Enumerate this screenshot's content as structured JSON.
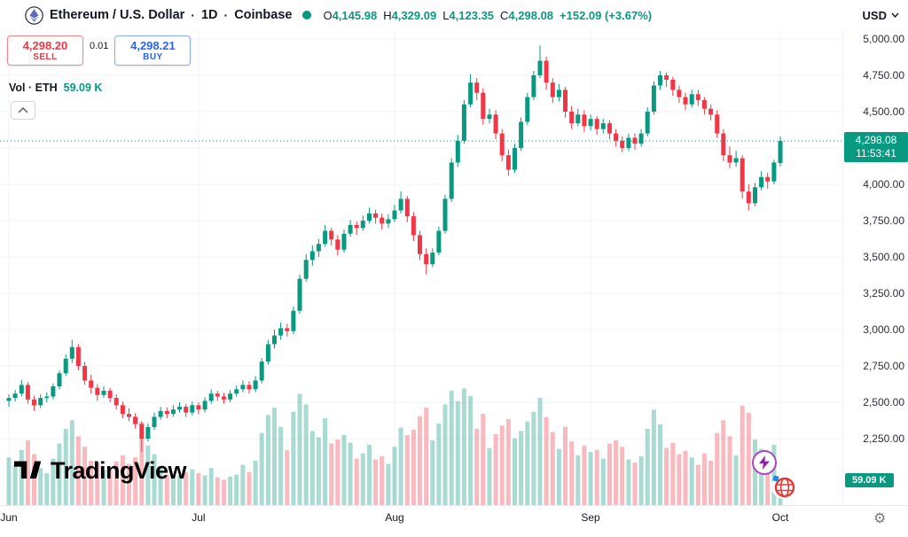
{
  "header": {
    "symbol": "Ethereum / U.S. Dollar",
    "separator": "·",
    "interval": "1D",
    "exchange": "Coinbase",
    "ohlc": {
      "o_label": "O",
      "o": "4,145.98",
      "h_label": "H",
      "h": "4,329.09",
      "l_label": "L",
      "l": "4,123.35",
      "c_label": "C",
      "c": "4,298.08",
      "change": "+152.09 (+3.67%)"
    },
    "currency": "USD"
  },
  "trade_panel": {
    "sell_price": "4,298.20",
    "sell_label": "SELL",
    "spread": "0.01",
    "buy_price": "4,298.21",
    "buy_label": "BUY"
  },
  "volume_indicator": {
    "label": "Vol · ETH",
    "value": "59.09 K"
  },
  "watermark": {
    "brand": "TradingView"
  },
  "price_scale": {
    "labels": [
      {
        "text": "5,000.00",
        "price": 5000
      },
      {
        "text": "4,750.00",
        "price": 4750
      },
      {
        "text": "4,500.00",
        "price": 4500
      },
      {
        "text": "4,000.00",
        "price": 4000
      },
      {
        "text": "3,750.00",
        "price": 3750
      },
      {
        "text": "3,500.00",
        "price": 3500
      },
      {
        "text": "3,250.00",
        "price": 3250
      },
      {
        "text": "3,000.00",
        "price": 3000
      },
      {
        "text": "2,750.00",
        "price": 2750
      },
      {
        "text": "2,500.00",
        "price": 2500
      },
      {
        "text": "2,250.00",
        "price": 2250
      }
    ],
    "current": {
      "text": "4,298.08",
      "countdown": "11:53:41",
      "price": 4298.08
    },
    "volume_badge": "59.09 K"
  },
  "time_scale": {
    "months": [
      {
        "label": "Jun",
        "candle_index": 0
      },
      {
        "label": "Jul",
        "candle_index": 30
      },
      {
        "label": "Aug",
        "candle_index": 61
      },
      {
        "label": "Sep",
        "candle_index": 92
      },
      {
        "label": "Oct",
        "candle_index": 122
      }
    ]
  },
  "icons": {
    "gear_glyph": "⚙"
  },
  "colors": {
    "up": "#089981",
    "down": "#F23645",
    "volume_up": "rgba(8,153,129,0.35)",
    "volume_down": "rgba(242,54,69,0.35)",
    "buy": "#2962FF",
    "sell": "#F23645",
    "badge": "#089981"
  },
  "chart_data": {
    "type": "candlestick",
    "title": "Ethereum / U.S. Dollar · 1D · Coinbase",
    "symbol": "ETH/USD",
    "exchange": "Coinbase",
    "interval": "1D",
    "x_axis": {
      "ticks": [
        "Jun",
        "Jul",
        "Aug",
        "Sep",
        "Oct"
      ]
    },
    "y_axis": {
      "visible_min": 1793,
      "visible_max": 5061,
      "tick_step": 250,
      "grid": true
    },
    "volume_unit": "K",
    "last_close": 4298.08,
    "columns": [
      "open",
      "high",
      "low",
      "close",
      "volume_k"
    ],
    "candles": [
      [
        2510,
        2555,
        2470,
        2530,
        117
      ],
      [
        2530,
        2585,
        2505,
        2560,
        99
      ],
      [
        2560,
        2655,
        2540,
        2620,
        135
      ],
      [
        2620,
        2640,
        2490,
        2520,
        159
      ],
      [
        2520,
        2545,
        2440,
        2480,
        125
      ],
      [
        2480,
        2555,
        2460,
        2530,
        91
      ],
      [
        2530,
        2570,
        2500,
        2540,
        78
      ],
      [
        2540,
        2630,
        2520,
        2610,
        114
      ],
      [
        2610,
        2720,
        2590,
        2700,
        151
      ],
      [
        2700,
        2830,
        2680,
        2800,
        187
      ],
      [
        2800,
        2930,
        2770,
        2880,
        208
      ],
      [
        2880,
        2900,
        2720,
        2750,
        169
      ],
      [
        2750,
        2780,
        2620,
        2650,
        143
      ],
      [
        2650,
        2690,
        2560,
        2600,
        109
      ],
      [
        2600,
        2625,
        2510,
        2550,
        104
      ],
      [
        2550,
        2610,
        2530,
        2580,
        86
      ],
      [
        2580,
        2600,
        2500,
        2530,
        94
      ],
      [
        2530,
        2555,
        2450,
        2480,
        107
      ],
      [
        2480,
        2505,
        2390,
        2420,
        122
      ],
      [
        2420,
        2460,
        2370,
        2400,
        101
      ],
      [
        2400,
        2425,
        2320,
        2350,
        117
      ],
      [
        2350,
        2370,
        2158,
        2250,
        203
      ],
      [
        2250,
        2355,
        2230,
        2330,
        146
      ],
      [
        2330,
        2430,
        2310,
        2400,
        125
      ],
      [
        2400,
        2470,
        2380,
        2440,
        96
      ],
      [
        2440,
        2465,
        2390,
        2420,
        75
      ],
      [
        2420,
        2480,
        2400,
        2450,
        68
      ],
      [
        2450,
        2500,
        2430,
        2470,
        73
      ],
      [
        2470,
        2490,
        2400,
        2430,
        81
      ],
      [
        2430,
        2505,
        2410,
        2480,
        88
      ],
      [
        2480,
        2500,
        2420,
        2450,
        78
      ],
      [
        2450,
        2535,
        2430,
        2510,
        73
      ],
      [
        2510,
        2590,
        2490,
        2560,
        91
      ],
      [
        2560,
        2580,
        2510,
        2540,
        68
      ],
      [
        2540,
        2565,
        2490,
        2520,
        62
      ],
      [
        2520,
        2585,
        2500,
        2560,
        70
      ],
      [
        2560,
        2615,
        2540,
        2590,
        75
      ],
      [
        2590,
        2650,
        2570,
        2620,
        99
      ],
      [
        2620,
        2645,
        2560,
        2590,
        81
      ],
      [
        2590,
        2680,
        2570,
        2650,
        109
      ],
      [
        2650,
        2805,
        2630,
        2780,
        177
      ],
      [
        2780,
        2930,
        2760,
        2900,
        221
      ],
      [
        2900,
        3000,
        2870,
        2960,
        239
      ],
      [
        2960,
        3050,
        2930,
        3010,
        192
      ],
      [
        3010,
        3040,
        2950,
        2990,
        135
      ],
      [
        2990,
        3160,
        2970,
        3130,
        229
      ],
      [
        3130,
        3380,
        3110,
        3350,
        273
      ],
      [
        3350,
        3520,
        3330,
        3480,
        247
      ],
      [
        3480,
        3580,
        3440,
        3540,
        182
      ],
      [
        3540,
        3625,
        3500,
        3590,
        166
      ],
      [
        3590,
        3720,
        3570,
        3680,
        213
      ],
      [
        3680,
        3700,
        3580,
        3620,
        151
      ],
      [
        3620,
        3650,
        3510,
        3550,
        161
      ],
      [
        3550,
        3690,
        3530,
        3660,
        172
      ],
      [
        3660,
        3755,
        3640,
        3720,
        153
      ],
      [
        3720,
        3745,
        3650,
        3700,
        114
      ],
      [
        3700,
        3785,
        3680,
        3750,
        127
      ],
      [
        3750,
        3840,
        3730,
        3800,
        148
      ],
      [
        3800,
        3825,
        3730,
        3770,
        112
      ],
      [
        3770,
        3800,
        3690,
        3730,
        120
      ],
      [
        3730,
        3795,
        3700,
        3760,
        101
      ],
      [
        3760,
        3860,
        3740,
        3820,
        143
      ],
      [
        3820,
        3950,
        3800,
        3900,
        190
      ],
      [
        3900,
        3920,
        3740,
        3780,
        172
      ],
      [
        3780,
        3810,
        3610,
        3650,
        185
      ],
      [
        3650,
        3680,
        3480,
        3520,
        218
      ],
      [
        3520,
        3560,
        3380,
        3450,
        239
      ],
      [
        3450,
        3560,
        3430,
        3530,
        159
      ],
      [
        3530,
        3710,
        3510,
        3680,
        200
      ],
      [
        3680,
        3930,
        3660,
        3900,
        247
      ],
      [
        3900,
        4180,
        3880,
        4150,
        281
      ],
      [
        4150,
        4340,
        4120,
        4300,
        255
      ],
      [
        4300,
        4580,
        4280,
        4550,
        286
      ],
      [
        4550,
        4760,
        4530,
        4700,
        268
      ],
      [
        4700,
        4730,
        4580,
        4630,
        187
      ],
      [
        4630,
        4660,
        4410,
        4450,
        224
      ],
      [
        4450,
        4520,
        4420,
        4480,
        140
      ],
      [
        4480,
        4510,
        4310,
        4350,
        174
      ],
      [
        4350,
        4380,
        4160,
        4200,
        195
      ],
      [
        4200,
        4240,
        4060,
        4100,
        211
      ],
      [
        4100,
        4280,
        4080,
        4250,
        164
      ],
      [
        4250,
        4460,
        4230,
        4430,
        182
      ],
      [
        4430,
        4630,
        4410,
        4600,
        205
      ],
      [
        4600,
        4780,
        4580,
        4750,
        229
      ],
      [
        4750,
        4956,
        4730,
        4850,
        263
      ],
      [
        4850,
        4880,
        4650,
        4700,
        216
      ],
      [
        4700,
        4730,
        4560,
        4600,
        179
      ],
      [
        4600,
        4690,
        4570,
        4650,
        138
      ],
      [
        4650,
        4670,
        4460,
        4500,
        192
      ],
      [
        4500,
        4540,
        4380,
        4420,
        156
      ],
      [
        4420,
        4520,
        4400,
        4480,
        122
      ],
      [
        4480,
        4510,
        4360,
        4400,
        146
      ],
      [
        4400,
        4480,
        4370,
        4450,
        130
      ],
      [
        4450,
        4470,
        4340,
        4380,
        135
      ],
      [
        4380,
        4450,
        4350,
        4420,
        114
      ],
      [
        4420,
        4440,
        4310,
        4350,
        151
      ],
      [
        4350,
        4380,
        4260,
        4300,
        159
      ],
      [
        4300,
        4330,
        4220,
        4250,
        143
      ],
      [
        4250,
        4350,
        4230,
        4320,
        112
      ],
      [
        4320,
        4350,
        4240,
        4280,
        104
      ],
      [
        4280,
        4380,
        4260,
        4350,
        120
      ],
      [
        4350,
        4530,
        4330,
        4500,
        187
      ],
      [
        4500,
        4710,
        4480,
        4680,
        234
      ],
      [
        4680,
        4780,
        4650,
        4750,
        198
      ],
      [
        4750,
        4770,
        4670,
        4720,
        140
      ],
      [
        4720,
        4740,
        4610,
        4650,
        153
      ],
      [
        4650,
        4680,
        4560,
        4600,
        125
      ],
      [
        4600,
        4630,
        4510,
        4550,
        133
      ],
      [
        4550,
        4650,
        4530,
        4620,
        117
      ],
      [
        4620,
        4650,
        4540,
        4580,
        99
      ],
      [
        4580,
        4600,
        4480,
        4520,
        127
      ],
      [
        4520,
        4550,
        4440,
        4480,
        109
      ],
      [
        4480,
        4510,
        4320,
        4350,
        177
      ],
      [
        4350,
        4380,
        4160,
        4200,
        208
      ],
      [
        4200,
        4260,
        4110,
        4150,
        169
      ],
      [
        4150,
        4230,
        4120,
        4180,
        122
      ],
      [
        4180,
        4200,
        3900,
        3950,
        244
      ],
      [
        3950,
        4000,
        3820,
        3870,
        226
      ],
      [
        3870,
        4010,
        3850,
        3980,
        161
      ],
      [
        3980,
        4090,
        3960,
        4050,
        138
      ],
      [
        4050,
        4080,
        3970,
        4020,
        107
      ],
      [
        4020,
        4170,
        4000,
        4150,
        148
      ],
      [
        4145.98,
        4329.09,
        4123.35,
        4298.08,
        59.09
      ]
    ]
  }
}
